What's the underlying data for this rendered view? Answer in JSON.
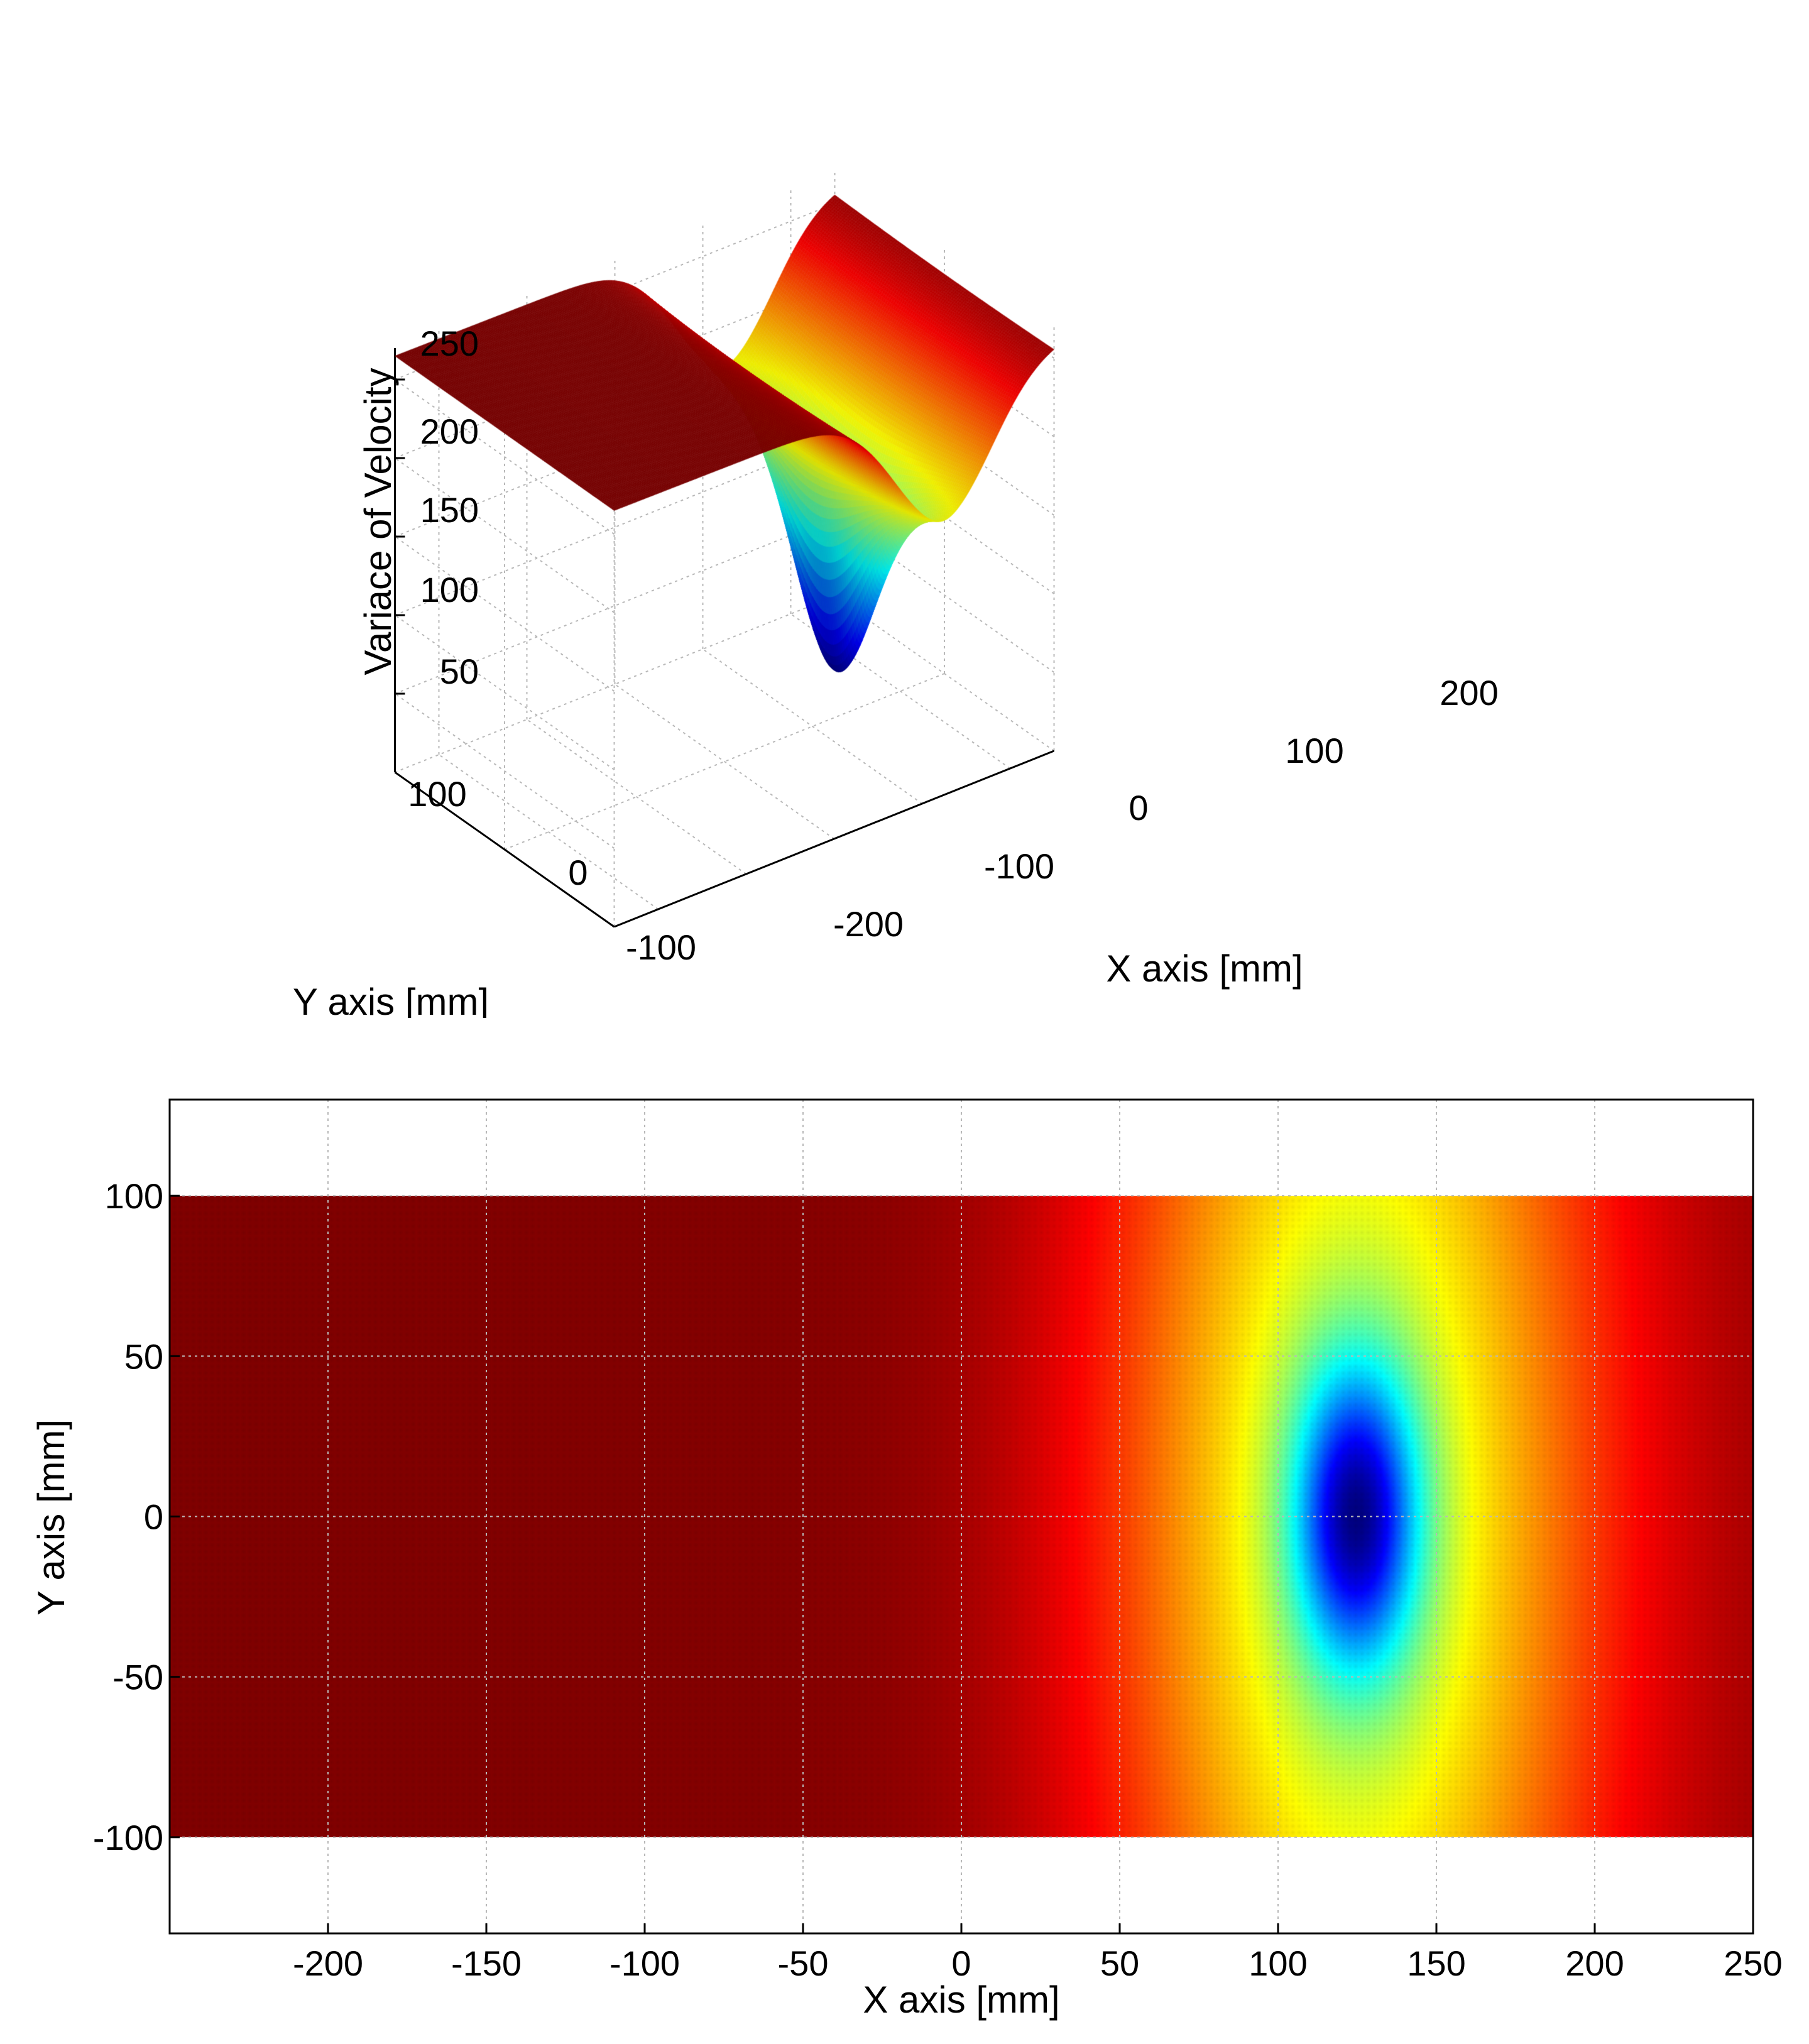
{
  "colors": {
    "colormap": "jet",
    "grid": "#b8b8b8",
    "axis": "#000000",
    "background": "#ffffff"
  },
  "chart_data": [
    {
      "type": "surface",
      "title": "",
      "xlabel": "X axis [mm]",
      "ylabel": "Y axis [mm]",
      "zlabel": "Variace of Velocity",
      "xlim": [
        -250,
        250
      ],
      "ylim": [
        -100,
        100
      ],
      "zlim": [
        0,
        270
      ],
      "xticks": [
        "-200",
        "-100",
        "0",
        "100",
        "200"
      ],
      "yticks": [
        "100",
        "0",
        "-100"
      ],
      "zticks": [
        "250",
        "200",
        "150",
        "100",
        "50"
      ],
      "grid": true,
      "surface_model": {
        "description": "variance of velocity over X-Y plane with a sharp minimum near x=125, y=0",
        "baseline_left": 265,
        "baseline_right": 262,
        "dip_center_x": 125,
        "dip_center_y": 0,
        "minimum_value": 30,
        "valley_floor": 160
      }
    },
    {
      "type": "heatmap",
      "title": "",
      "xlabel": "X axis [mm]",
      "ylabel": "Y axis [mm]",
      "xlim": [
        -250,
        250
      ],
      "ylim": [
        -130,
        130
      ],
      "data_extent": {
        "x": [
          -250,
          250
        ],
        "y": [
          -100,
          100
        ]
      },
      "xticks": [
        "-200",
        "-150",
        "-100",
        "-50",
        "0",
        "50",
        "100",
        "150",
        "200",
        "250"
      ],
      "yticks": [
        "100",
        "50",
        "0",
        "-50",
        "-100"
      ],
      "grid": true,
      "minimum_at": {
        "x": 125,
        "y": 0
      }
    }
  ]
}
